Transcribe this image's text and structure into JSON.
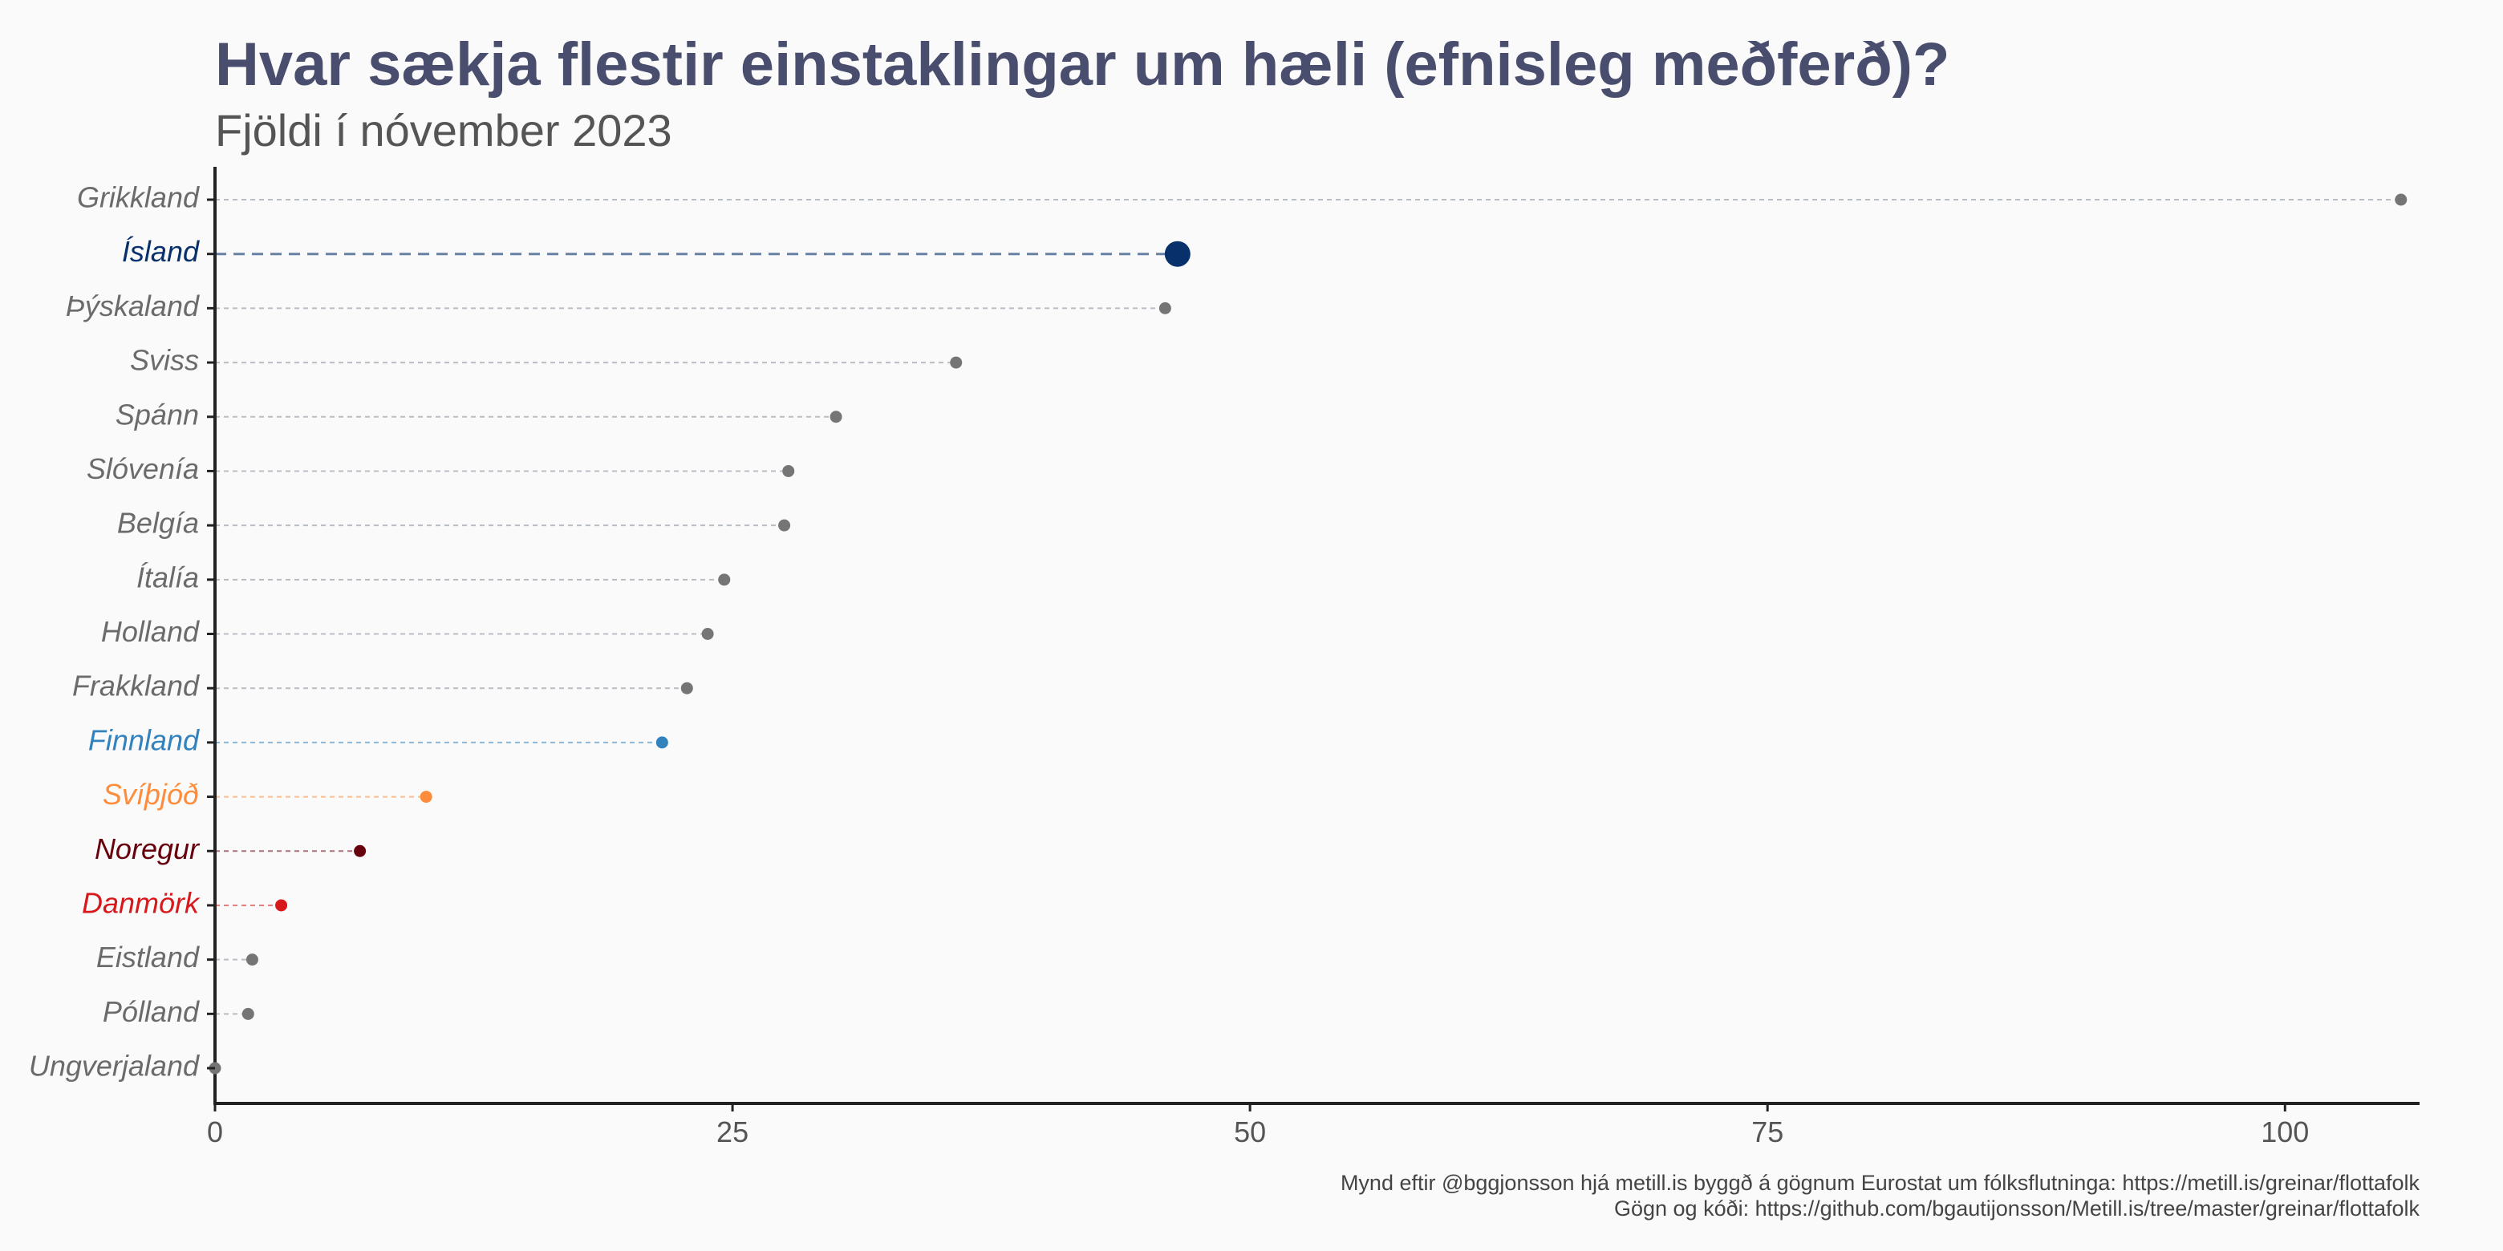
{
  "chart_data": {
    "type": "lollipop",
    "title": "Hvar sækja flestir einstaklingar um hæli (efnisleg meðferð)?",
    "subtitle": "Fjöldi í nóvember 2023",
    "xlabel": "",
    "ylabel": "",
    "xlim": [
      0,
      106.5
    ],
    "xticks": [
      {
        "value": 0,
        "label": "0"
      },
      {
        "value": 25,
        "label": "25"
      },
      {
        "value": 50,
        "label": "50"
      },
      {
        "value": 75,
        "label": "75"
      },
      {
        "value": 100,
        "label": "100"
      }
    ],
    "grid": false,
    "default_color": "#757575",
    "points": [
      {
        "name": "Grikkland",
        "value": 105.6,
        "color": "#757575",
        "highlight": false
      },
      {
        "name": "Ísland",
        "value": 46.5,
        "color": "#08306b",
        "highlight": true
      },
      {
        "name": "Þýskaland",
        "value": 45.9,
        "color": "#757575",
        "highlight": false
      },
      {
        "name": "Sviss",
        "value": 35.8,
        "color": "#757575",
        "highlight": false
      },
      {
        "name": "Spánn",
        "value": 30.0,
        "color": "#757575",
        "highlight": false
      },
      {
        "name": "Slóvenía",
        "value": 27.7,
        "color": "#757575",
        "highlight": false
      },
      {
        "name": "Belgía",
        "value": 27.5,
        "color": "#757575",
        "highlight": false
      },
      {
        "name": "Ítalía",
        "value": 24.6,
        "color": "#757575",
        "highlight": false
      },
      {
        "name": "Holland",
        "value": 23.8,
        "color": "#757575",
        "highlight": false
      },
      {
        "name": "Frakkland",
        "value": 22.8,
        "color": "#757575",
        "highlight": false
      },
      {
        "name": "Finnland",
        "value": 21.6,
        "color": "#3182bd",
        "highlight": false
      },
      {
        "name": "Svíþjóð",
        "value": 10.2,
        "color": "#fd8d3c",
        "highlight": false
      },
      {
        "name": "Noregur",
        "value": 7.0,
        "color": "#67000d",
        "highlight": false
      },
      {
        "name": "Danmörk",
        "value": 3.2,
        "color": "#d7191c",
        "highlight": false
      },
      {
        "name": "Eistland",
        "value": 1.8,
        "color": "#757575",
        "highlight": false
      },
      {
        "name": "Pólland",
        "value": 1.6,
        "color": "#757575",
        "highlight": false
      },
      {
        "name": "Ungverjaland",
        "value": 0.0,
        "color": "#757575",
        "highlight": false
      }
    ]
  },
  "caption": {
    "line1": "Mynd eftir @bggjonsson hjá metill.is byggð á gögnum Eurostat um fólksflutninga: https://metill.is/greinar/flottafolk",
    "line2": "Gögn og kóði: https://github.com/bgautijonsson/Metill.is/tree/master/greinar/flottafolk"
  }
}
